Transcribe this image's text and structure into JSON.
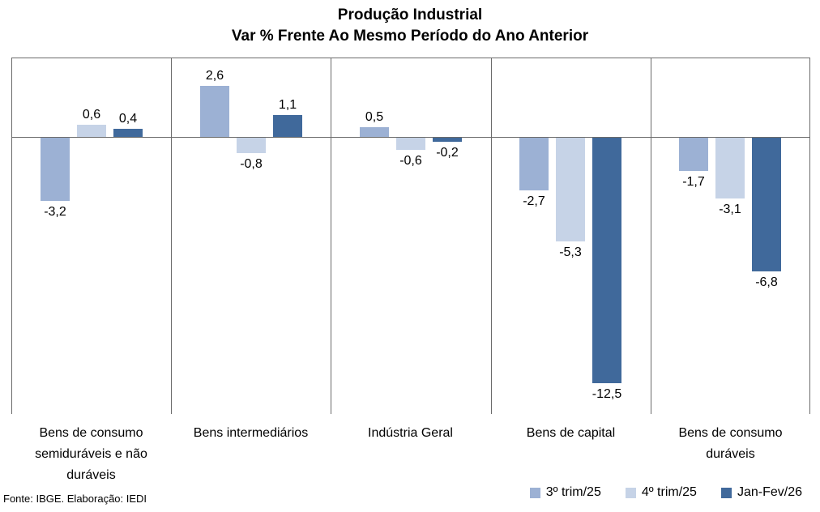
{
  "title": {
    "line1": "Produção Industrial",
    "line2": "Var % Frente Ao Mesmo Período do Ano Anterior"
  },
  "footer": {
    "source": "Fonte: IBGE. Elaboração: IEDI"
  },
  "chart_data": {
    "type": "bar",
    "title": "Produção Industrial",
    "subtitle": "Var % Frente Ao Mesmo Período do Ano Anterior",
    "categories": [
      "Bens de consumo semiduráveis e não duráveis",
      "Bens intermediários",
      "Indústria Geral",
      "Bens de capital",
      "Bens de consumo duráveis"
    ],
    "series": [
      {
        "name": "3º trim/25",
        "color": "#9CB1D4",
        "values": [
          -3.2,
          2.6,
          0.5,
          -2.7,
          -1.7
        ]
      },
      {
        "name": "4º trim/25",
        "color": "#C6D3E7",
        "values": [
          0.6,
          -0.8,
          -0.6,
          -5.3,
          -3.1
        ]
      },
      {
        "name": "Jan-Fev/26",
        "color": "#40699B",
        "values": [
          0.4,
          1.1,
          -0.2,
          -12.5,
          -6.8
        ]
      }
    ],
    "value_labels": [
      [
        "-3,2",
        "0,6",
        "0,4"
      ],
      [
        "2,6",
        "-0,8",
        "1,1"
      ],
      [
        "0,5",
        "-0,6",
        "-0,2"
      ],
      [
        "-2,7",
        "-5,3",
        "-12,5"
      ],
      [
        "-1,7",
        "-3,1",
        "-6,8"
      ]
    ],
    "ylabel": "",
    "xlabel": "",
    "ylim": [
      -14.1,
      4.05
    ],
    "decimal_separator": ",",
    "y_axis_visible": false,
    "grid": "vertical panel separators + zero line + top border",
    "grid_color": "#6B6B6B",
    "legend_position": "bottom-right",
    "zero_line": true
  }
}
